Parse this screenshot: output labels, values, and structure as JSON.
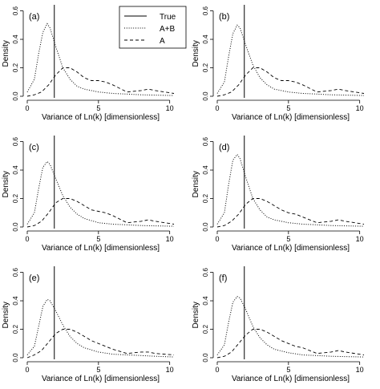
{
  "legend": {
    "items": [
      {
        "label": "True",
        "style": "solid"
      },
      {
        "label": "A+B",
        "style": "dotted"
      },
      {
        "label": "A",
        "style": "dashed"
      }
    ],
    "placement": "top, panel (a)"
  },
  "chart_data": [
    {
      "type": "line",
      "panel_label": "(a)",
      "xlabel": "Variance of Ln(k) [dimensionless]",
      "ylabel": "Density",
      "xlim": [
        0,
        10.3
      ],
      "ylim": [
        0,
        0.62
      ],
      "xticks": [
        "0",
        "5",
        "10"
      ],
      "xtick_values": [
        0,
        5,
        10
      ],
      "yticks": [
        "0.0",
        "0.2",
        "0.4",
        "0.6"
      ],
      "ytick_values": [
        0,
        0.2,
        0.4,
        0.6
      ],
      "true_value": 1.9,
      "series": [
        {
          "name": "A+B",
          "style": "dotted",
          "x": [
            0,
            0.5,
            0.8,
            1.1,
            1.4,
            1.6,
            2.0,
            2.5,
            3.0,
            3.5,
            4.0,
            5.0,
            6.0,
            7.0,
            8.0,
            9.0,
            10.3
          ],
          "y": [
            0.03,
            0.12,
            0.3,
            0.45,
            0.51,
            0.48,
            0.35,
            0.2,
            0.12,
            0.07,
            0.05,
            0.03,
            0.02,
            0.015,
            0.01,
            0.008,
            0.005
          ]
        },
        {
          "name": "A",
          "style": "dashed",
          "x": [
            0,
            0.5,
            1.0,
            1.5,
            2.0,
            2.5,
            3.0,
            3.5,
            4.0,
            4.5,
            5.0,
            5.5,
            6.0,
            7.0,
            8.0,
            8.5,
            9.0,
            10.3
          ],
          "y": [
            0.0,
            0.01,
            0.03,
            0.08,
            0.15,
            0.2,
            0.2,
            0.17,
            0.13,
            0.11,
            0.11,
            0.1,
            0.08,
            0.03,
            0.04,
            0.05,
            0.04,
            0.02
          ]
        }
      ]
    },
    {
      "type": "line",
      "panel_label": "(b)",
      "xlabel": "Variance of Ln(k) [dimensionless]",
      "ylabel": "Density",
      "xlim": [
        0,
        10.3
      ],
      "ylim": [
        0,
        0.62
      ],
      "xticks": [
        "0",
        "5",
        "10"
      ],
      "xtick_values": [
        0,
        5,
        10
      ],
      "yticks": [
        "0.0",
        "0.2",
        "0.4",
        "0.6"
      ],
      "ytick_values": [
        0,
        0.2,
        0.4,
        0.6
      ],
      "true_value": 1.9,
      "series": [
        {
          "name": "A+B",
          "style": "dotted",
          "x": [
            0,
            0.5,
            0.8,
            1.1,
            1.4,
            1.6,
            2.0,
            2.5,
            3.0,
            3.5,
            4.0,
            5.0,
            6.0,
            7.0,
            8.0,
            9.0,
            10.3
          ],
          "y": [
            0.02,
            0.1,
            0.28,
            0.44,
            0.5,
            0.48,
            0.36,
            0.22,
            0.13,
            0.08,
            0.05,
            0.03,
            0.02,
            0.015,
            0.01,
            0.008,
            0.005
          ]
        },
        {
          "name": "A",
          "style": "dashed",
          "x": [
            0,
            0.5,
            1.0,
            1.5,
            2.0,
            2.5,
            3.0,
            3.5,
            4.0,
            4.5,
            5.0,
            5.5,
            6.0,
            7.0,
            8.0,
            8.5,
            9.0,
            10.3
          ],
          "y": [
            0.0,
            0.01,
            0.03,
            0.08,
            0.15,
            0.2,
            0.2,
            0.17,
            0.13,
            0.11,
            0.11,
            0.1,
            0.08,
            0.03,
            0.04,
            0.05,
            0.04,
            0.02
          ]
        }
      ]
    },
    {
      "type": "line",
      "panel_label": "(c)",
      "xlabel": "Variance of Ln(k) [dimensionless]",
      "ylabel": "Density",
      "xlim": [
        0,
        10.3
      ],
      "ylim": [
        0,
        0.62
      ],
      "xticks": [
        "0",
        "5",
        "10"
      ],
      "xtick_values": [
        0,
        5,
        10
      ],
      "yticks": [
        "0.0",
        "0.2",
        "0.4",
        "0.6"
      ],
      "ytick_values": [
        0,
        0.2,
        0.4,
        0.6
      ],
      "true_value": 1.9,
      "series": [
        {
          "name": "A+B",
          "style": "dotted",
          "x": [
            0,
            0.5,
            0.8,
            1.1,
            1.4,
            1.6,
            2.0,
            2.5,
            3.0,
            3.5,
            4.0,
            5.0,
            6.0,
            7.0,
            8.0,
            9.0,
            10.3
          ],
          "y": [
            0.02,
            0.1,
            0.27,
            0.42,
            0.46,
            0.44,
            0.34,
            0.22,
            0.14,
            0.09,
            0.06,
            0.03,
            0.02,
            0.015,
            0.01,
            0.008,
            0.005
          ]
        },
        {
          "name": "A",
          "style": "dashed",
          "x": [
            0,
            0.5,
            1.0,
            1.5,
            2.0,
            2.5,
            3.0,
            3.5,
            4.0,
            4.5,
            5.0,
            5.5,
            6.0,
            7.0,
            8.0,
            8.5,
            9.0,
            10.3
          ],
          "y": [
            0.0,
            0.01,
            0.04,
            0.1,
            0.17,
            0.2,
            0.2,
            0.18,
            0.15,
            0.12,
            0.11,
            0.1,
            0.08,
            0.03,
            0.04,
            0.05,
            0.04,
            0.02
          ]
        }
      ]
    },
    {
      "type": "line",
      "panel_label": "(d)",
      "xlabel": "Variance of Ln(k) [dimensionless]",
      "ylabel": "Density",
      "xlim": [
        0,
        10.3
      ],
      "ylim": [
        0,
        0.62
      ],
      "xticks": [
        "0",
        "5",
        "10"
      ],
      "xtick_values": [
        0,
        5,
        10
      ],
      "yticks": [
        "0.0",
        "0.2",
        "0.4",
        "0.6"
      ],
      "ytick_values": [
        0,
        0.2,
        0.4,
        0.6
      ],
      "true_value": 1.9,
      "series": [
        {
          "name": "A+B",
          "style": "dotted",
          "x": [
            0,
            0.5,
            0.8,
            1.1,
            1.4,
            1.6,
            2.0,
            2.5,
            3.0,
            3.5,
            4.0,
            5.0,
            6.0,
            7.0,
            8.0,
            9.0,
            10.3
          ],
          "y": [
            0.02,
            0.1,
            0.3,
            0.47,
            0.51,
            0.48,
            0.35,
            0.2,
            0.12,
            0.07,
            0.05,
            0.03,
            0.02,
            0.015,
            0.01,
            0.008,
            0.005
          ]
        },
        {
          "name": "A",
          "style": "dashed",
          "x": [
            0,
            0.5,
            1.0,
            1.5,
            2.0,
            2.5,
            3.0,
            3.5,
            4.0,
            4.5,
            5.0,
            5.5,
            6.0,
            7.0,
            8.0,
            8.5,
            9.0,
            10.3
          ],
          "y": [
            0.0,
            0.01,
            0.04,
            0.09,
            0.16,
            0.2,
            0.2,
            0.18,
            0.15,
            0.12,
            0.1,
            0.09,
            0.07,
            0.03,
            0.04,
            0.05,
            0.04,
            0.02
          ]
        }
      ]
    },
    {
      "type": "line",
      "panel_label": "(e)",
      "xlabel": "Variance of Ln(k) [dimensionless]",
      "ylabel": "Density",
      "xlim": [
        0,
        10.3
      ],
      "ylim": [
        0,
        0.62
      ],
      "xticks": [
        "0",
        "5",
        "10"
      ],
      "xtick_values": [
        0,
        5,
        10
      ],
      "yticks": [
        "0.0",
        "0.2",
        "0.4",
        "0.6"
      ],
      "ytick_values": [
        0,
        0.2,
        0.4,
        0.6
      ],
      "true_value": 1.9,
      "series": [
        {
          "name": "A+B",
          "style": "dotted",
          "x": [
            0,
            0.5,
            0.8,
            1.1,
            1.4,
            1.6,
            2.0,
            2.5,
            3.0,
            3.5,
            4.0,
            5.0,
            6.0,
            7.0,
            8.0,
            9.0,
            10.3
          ],
          "y": [
            0.02,
            0.08,
            0.22,
            0.36,
            0.41,
            0.4,
            0.33,
            0.23,
            0.15,
            0.1,
            0.07,
            0.04,
            0.025,
            0.02,
            0.015,
            0.01,
            0.005
          ]
        },
        {
          "name": "A",
          "style": "dashed",
          "x": [
            0,
            0.5,
            1.0,
            1.5,
            2.0,
            2.5,
            3.0,
            3.5,
            4.0,
            4.5,
            5.0,
            5.5,
            6.0,
            7.0,
            8.0,
            8.5,
            9.0,
            10.3
          ],
          "y": [
            0.0,
            0.02,
            0.05,
            0.11,
            0.17,
            0.2,
            0.2,
            0.18,
            0.15,
            0.12,
            0.1,
            0.08,
            0.06,
            0.03,
            0.04,
            0.04,
            0.03,
            0.02
          ]
        }
      ]
    },
    {
      "type": "line",
      "panel_label": "(f)",
      "xlabel": "Variance of Ln(k) [dimensionless]",
      "ylabel": "Density",
      "xlim": [
        0,
        10.3
      ],
      "ylim": [
        0,
        0.62
      ],
      "xticks": [
        "0",
        "5",
        "10"
      ],
      "xtick_values": [
        0,
        5,
        10
      ],
      "yticks": [
        "0.0",
        "0.2",
        "0.4",
        "0.6"
      ],
      "ytick_values": [
        0,
        0.2,
        0.4,
        0.6
      ],
      "true_value": 1.9,
      "series": [
        {
          "name": "A+B",
          "style": "dotted",
          "x": [
            0,
            0.5,
            0.8,
            1.1,
            1.4,
            1.6,
            2.0,
            2.5,
            3.0,
            3.5,
            4.0,
            5.0,
            6.0,
            7.0,
            8.0,
            9.0,
            10.3
          ],
          "y": [
            0.02,
            0.09,
            0.25,
            0.39,
            0.43,
            0.42,
            0.34,
            0.22,
            0.14,
            0.09,
            0.06,
            0.035,
            0.02,
            0.015,
            0.01,
            0.008,
            0.005
          ]
        },
        {
          "name": "A",
          "style": "dashed",
          "x": [
            0,
            0.5,
            1.0,
            1.5,
            2.0,
            2.5,
            3.0,
            3.5,
            4.0,
            4.5,
            5.0,
            5.5,
            6.0,
            7.0,
            8.0,
            8.5,
            9.0,
            10.3
          ],
          "y": [
            0.0,
            0.01,
            0.04,
            0.1,
            0.16,
            0.2,
            0.2,
            0.18,
            0.15,
            0.12,
            0.1,
            0.08,
            0.07,
            0.03,
            0.04,
            0.05,
            0.04,
            0.02
          ]
        }
      ]
    }
  ]
}
